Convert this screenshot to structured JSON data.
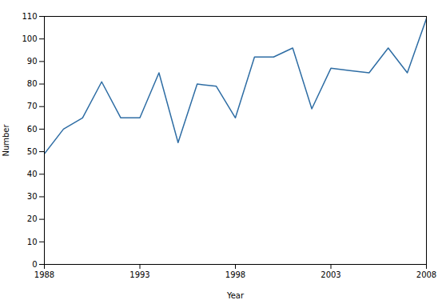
{
  "chart_data": {
    "type": "line",
    "x": [
      1988,
      1989,
      1990,
      1991,
      1992,
      1993,
      1994,
      1995,
      1996,
      1997,
      1998,
      1999,
      2000,
      2001,
      2002,
      2003,
      2004,
      2005,
      2006,
      2007,
      2008
    ],
    "values": [
      49,
      60,
      65,
      81,
      65,
      65,
      85,
      54,
      80,
      79,
      65,
      92,
      92,
      96,
      69,
      87,
      86,
      85,
      96,
      85,
      109
    ],
    "color": "#2e6da4",
    "xlabel": "Year",
    "ylabel": "Number",
    "xlim": [
      1988,
      2008
    ],
    "ylim": [
      0,
      110
    ],
    "xticks": [
      1988,
      1993,
      1998,
      2003,
      2008
    ],
    "yticks": [
      0,
      10,
      20,
      30,
      40,
      50,
      60,
      70,
      80,
      90,
      100,
      110
    ],
    "grid": false
  }
}
